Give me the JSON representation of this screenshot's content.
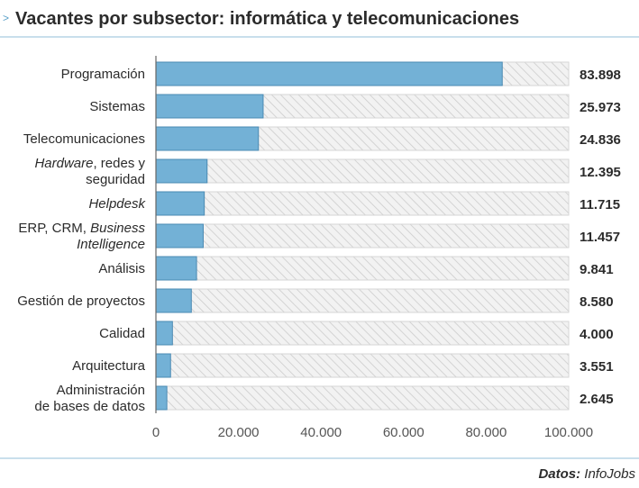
{
  "header": {
    "chevron": ">",
    "title": "Vacantes por subsector: informática y telecomunicaciones"
  },
  "footer": {
    "source_label": "Datos:",
    "source_name": "InfoJobs"
  },
  "colors": {
    "bar": "#73b1d6",
    "bar_stroke": "#4a8ab3",
    "background_track": "#f2f2f2",
    "hatch": "#cccccc",
    "rule": "#c9dfec"
  },
  "chart_data": {
    "type": "bar",
    "orientation": "horizontal",
    "title": "Vacantes por subsector: informática y telecomunicaciones",
    "xlabel": "",
    "ylabel": "",
    "xlim": [
      0,
      100000
    ],
    "ticks": [
      0,
      20000,
      40000,
      60000,
      80000,
      100000
    ],
    "tick_labels": [
      "0",
      "20.000",
      "40.000",
      "60.000",
      "80.000",
      "100.000"
    ],
    "categories": [
      {
        "lines": [
          {
            "parts": [
              {
                "t": "Programación",
                "i": false
              }
            ]
          }
        ]
      },
      {
        "lines": [
          {
            "parts": [
              {
                "t": "Sistemas",
                "i": false
              }
            ]
          }
        ]
      },
      {
        "lines": [
          {
            "parts": [
              {
                "t": "Telecomunicaciones",
                "i": false
              }
            ]
          }
        ]
      },
      {
        "lines": [
          {
            "parts": [
              {
                "t": "Hardware",
                "i": true
              },
              {
                "t": ", redes y",
                "i": false
              }
            ]
          },
          {
            "parts": [
              {
                "t": "seguridad",
                "i": false
              }
            ]
          }
        ]
      },
      {
        "lines": [
          {
            "parts": [
              {
                "t": "Helpdesk",
                "i": true
              }
            ]
          }
        ]
      },
      {
        "lines": [
          {
            "parts": [
              {
                "t": "ERP, CRM, ",
                "i": false
              },
              {
                "t": "Business",
                "i": true
              }
            ]
          },
          {
            "parts": [
              {
                "t": "Intelligence",
                "i": true
              }
            ]
          }
        ]
      },
      {
        "lines": [
          {
            "parts": [
              {
                "t": "Análisis",
                "i": false
              }
            ]
          }
        ]
      },
      {
        "lines": [
          {
            "parts": [
              {
                "t": "Gestión de proyectos",
                "i": false
              }
            ]
          }
        ]
      },
      {
        "lines": [
          {
            "parts": [
              {
                "t": "Calidad",
                "i": false
              }
            ]
          }
        ]
      },
      {
        "lines": [
          {
            "parts": [
              {
                "t": "Arquitectura",
                "i": false
              }
            ]
          }
        ]
      },
      {
        "lines": [
          {
            "parts": [
              {
                "t": "Administración",
                "i": false
              }
            ]
          },
          {
            "parts": [
              {
                "t": "de bases de datos",
                "i": false
              }
            ]
          }
        ]
      }
    ],
    "values": [
      83898,
      25973,
      24836,
      12395,
      11715,
      11457,
      9841,
      8580,
      4000,
      3551,
      2645
    ],
    "value_labels": [
      "83.898",
      "25.973",
      "24.836",
      "12.395",
      "11.715",
      "11.457",
      "9.841",
      "8.580",
      "4.000",
      "3.551",
      "2.645"
    ]
  }
}
